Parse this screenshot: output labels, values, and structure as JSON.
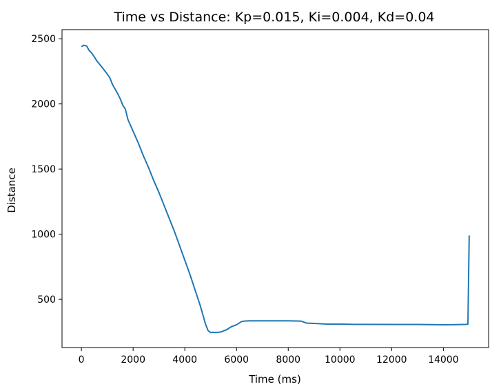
{
  "chart_data": {
    "type": "line",
    "title": "Time vs Distance: Kp=0.015, Ki=0.004, Kd=0.04",
    "xlabel": "Time (ms)",
    "ylabel": "Distance",
    "xlim": [
      -750,
      15750
    ],
    "ylim": [
      130,
      2570
    ],
    "x_ticks": [
      0,
      2000,
      4000,
      6000,
      8000,
      10000,
      12000,
      14000
    ],
    "x_tick_labels": [
      "0",
      "2000",
      "4000",
      "6000",
      "8000",
      "10000",
      "12000",
      "14000"
    ],
    "y_ticks": [
      500,
      1000,
      1500,
      2000,
      2500
    ],
    "y_tick_labels": [
      "500",
      "1000",
      "1500",
      "2000",
      "2500"
    ],
    "grid": false,
    "legend": "none",
    "line_color": "#1f77b4",
    "series": [
      {
        "x": [
          0,
          100,
          200,
          300,
          400,
          600,
          800,
          1000,
          1100,
          1200,
          1400,
          1500,
          1600,
          1700,
          1800,
          2000,
          2200,
          2400,
          2600,
          2800,
          3000,
          3200,
          3400,
          3600,
          3800,
          4000,
          4200,
          4400,
          4600,
          4700,
          4800,
          4900,
          5000,
          5100,
          5200,
          5400,
          5600,
          5800,
          6000,
          6200,
          6300,
          6500,
          7000,
          7500,
          8000,
          8500,
          8700,
          9000,
          9500,
          10000,
          10500,
          11000,
          12000,
          13000,
          14000,
          14500,
          14900,
          14950,
          15000
        ],
        "y": [
          2440,
          2450,
          2445,
          2410,
          2390,
          2330,
          2280,
          2230,
          2200,
          2150,
          2080,
          2040,
          1990,
          1960,
          1880,
          1790,
          1700,
          1600,
          1510,
          1410,
          1320,
          1220,
          1120,
          1020,
          910,
          800,
          690,
          570,
          450,
          380,
          310,
          260,
          245,
          248,
          245,
          250,
          265,
          290,
          305,
          330,
          333,
          335,
          335,
          335,
          335,
          333,
          318,
          315,
          310,
          310,
          308,
          308,
          307,
          307,
          305,
          306,
          308,
          310,
          990
        ]
      }
    ]
  }
}
